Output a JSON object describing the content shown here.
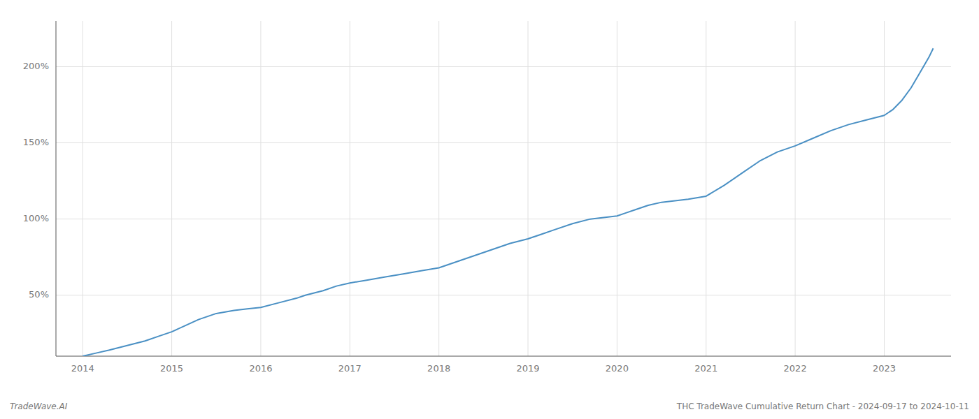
{
  "chart_data": {
    "type": "line",
    "title": "THC TradeWave Cumulative Return Chart - 2024-09-17 to 2024-10-11",
    "annotations": [
      "TradeWave.AI"
    ],
    "color": "#4a90c4",
    "grid": true,
    "x": [
      2014.0,
      2014.15,
      2014.3,
      2014.5,
      2014.7,
      2014.85,
      2015.0,
      2015.15,
      2015.3,
      2015.5,
      2015.7,
      2015.85,
      2016.0,
      2016.2,
      2016.4,
      2016.5,
      2016.7,
      2016.85,
      2017.0,
      2017.2,
      2017.4,
      2017.6,
      2017.8,
      2018.0,
      2018.2,
      2018.4,
      2018.6,
      2018.8,
      2019.0,
      2019.15,
      2019.3,
      2019.5,
      2019.7,
      2019.85,
      2020.0,
      2020.1,
      2020.2,
      2020.35,
      2020.5,
      2020.65,
      2020.8,
      2021.0,
      2021.2,
      2021.4,
      2021.6,
      2021.8,
      2022.0,
      2022.2,
      2022.4,
      2022.6,
      2022.8,
      2023.0,
      2023.1,
      2023.2,
      2023.3,
      2023.4,
      2023.5,
      2023.55
    ],
    "values": [
      10,
      12,
      14,
      17,
      20,
      23,
      26,
      30,
      34,
      38,
      40,
      41,
      42,
      45,
      48,
      50,
      53,
      56,
      58,
      60,
      62,
      64,
      66,
      68,
      72,
      76,
      80,
      84,
      87,
      90,
      93,
      97,
      100,
      101,
      102,
      104,
      106,
      109,
      111,
      112,
      113,
      115,
      122,
      130,
      138,
      144,
      148,
      153,
      158,
      162,
      165,
      168,
      172,
      178,
      186,
      196,
      206,
      212
    ],
    "xlim": [
      2013.7,
      2023.75
    ],
    "xticks": [
      2014,
      2015,
      2016,
      2017,
      2018,
      2019,
      2020,
      2021,
      2022,
      2023
    ],
    "ylim": [
      10,
      230
    ],
    "yticks": [
      {
        "value": 50,
        "label": "50%"
      },
      {
        "value": 100,
        "label": "100%"
      },
      {
        "value": 150,
        "label": "150%"
      },
      {
        "value": 200,
        "label": "200%"
      }
    ]
  }
}
